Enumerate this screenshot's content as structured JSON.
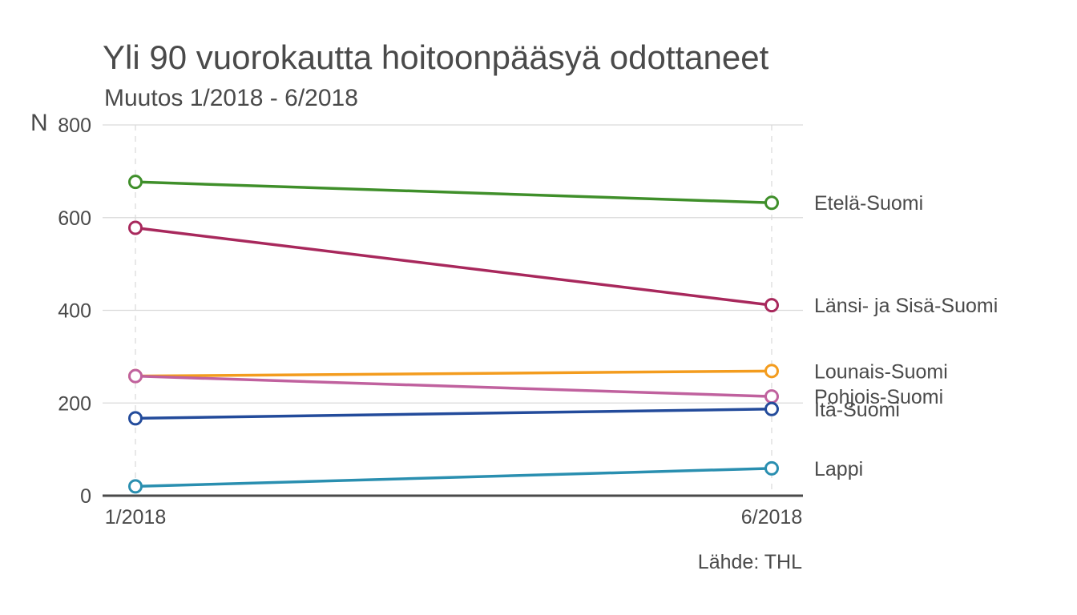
{
  "chart_data": {
    "type": "line",
    "title": "Yli 90 vuorokautta hoitoonpääsyä odottaneet",
    "subtitle": "Muutos 1/2018 - 6/2018",
    "ylabel": "N",
    "xlabel": "",
    "source": "Lähde: THL",
    "categories": [
      "1/2018",
      "6/2018"
    ],
    "ylim": [
      0,
      800
    ],
    "yticks": [
      0,
      200,
      400,
      600,
      800
    ],
    "grid": true,
    "legend": "direct labels at line ends",
    "series": [
      {
        "name": "Etelä-Suomi",
        "color": "#3f8f2a",
        "values": [
          677,
          632
        ]
      },
      {
        "name": "Länsi- ja Sisä-Suomi",
        "color": "#a8285c",
        "values": [
          578,
          411
        ]
      },
      {
        "name": "Lounais-Suomi",
        "color": "#f39c1e",
        "values": [
          258,
          269
        ]
      },
      {
        "name": "Pohjois-Suomi",
        "color": "#c0619e",
        "values": [
          258,
          214
        ]
      },
      {
        "name": "Itä-Suomi",
        "color": "#234b9b",
        "values": [
          167,
          187
        ]
      },
      {
        "name": "Lappi",
        "color": "#2a8fb0",
        "values": [
          20,
          59
        ]
      }
    ]
  }
}
